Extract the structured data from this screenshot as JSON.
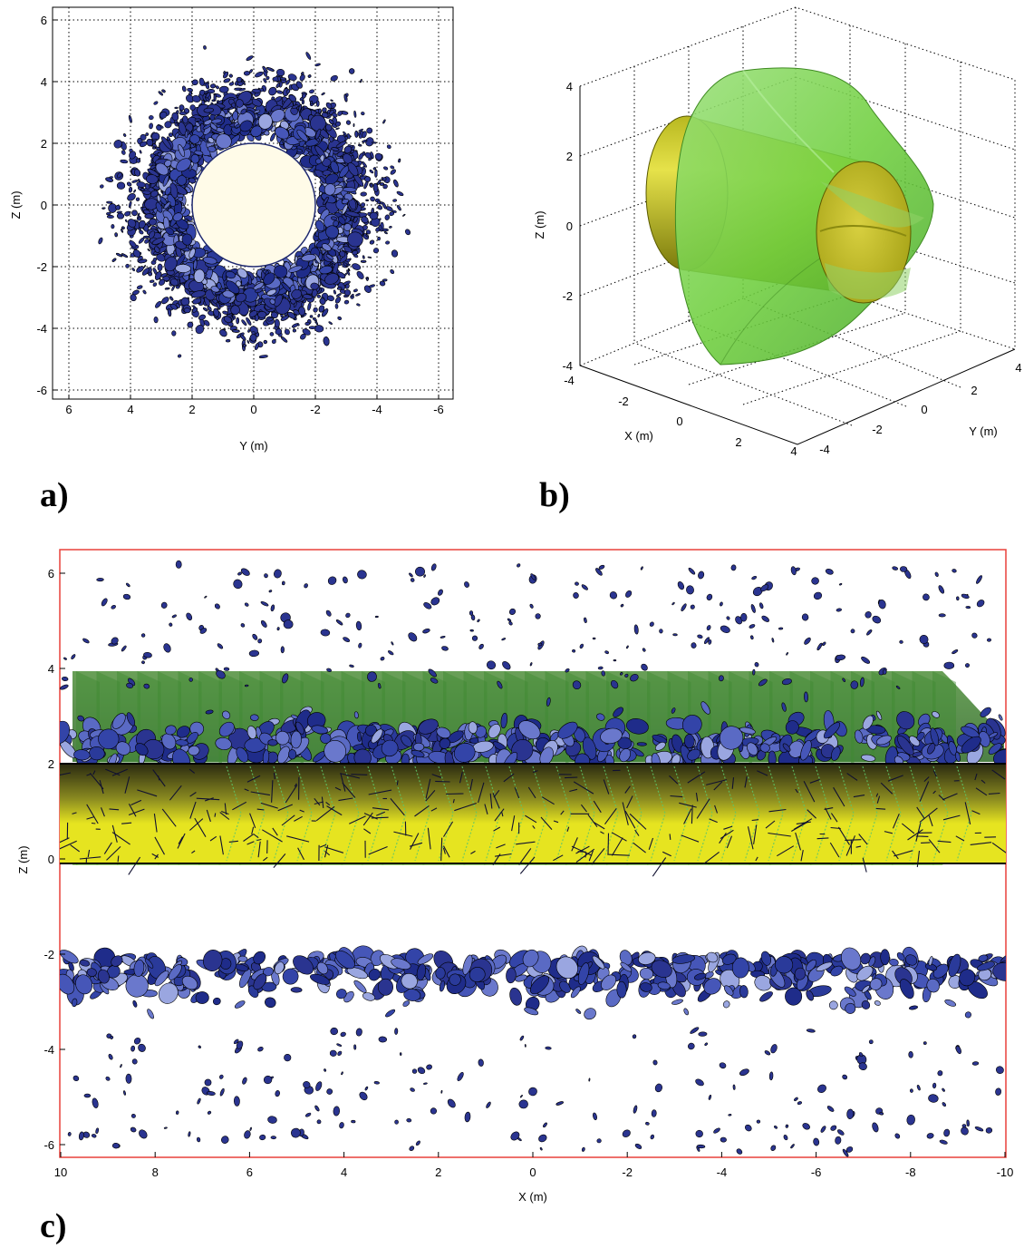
{
  "panels": {
    "a": {
      "label": "a)",
      "xlabel": "Y (m)",
      "ylabel": "Z (m)",
      "xticks": [
        "6",
        "4",
        "2",
        "0",
        "-2",
        "-4",
        "-6"
      ],
      "yticks": [
        "6",
        "4",
        "2",
        "0",
        "-2",
        "-4",
        "-6"
      ]
    },
    "b": {
      "label": "b)",
      "xlabel": "X (m)",
      "ylabel": "Z (m)",
      "zlabel": "Y (m)",
      "zticks": [
        "4",
        "2",
        "0",
        "-2",
        "-4"
      ],
      "xticks": [
        "-4",
        "-2",
        "0",
        "2",
        "4"
      ],
      "yticks": [
        "-4",
        "-2",
        "0",
        "2",
        "4"
      ]
    },
    "c": {
      "label": "c)",
      "xlabel": "X (m)",
      "ylabel": "Z (m)",
      "xticks": [
        "10",
        "8",
        "6",
        "4",
        "2",
        "0",
        "-2",
        "-4",
        "-6",
        "-8",
        "-10"
      ],
      "yticks": [
        "6",
        "4",
        "2",
        "0",
        "-2",
        "-4",
        "-6"
      ]
    }
  },
  "colors": {
    "fracture_blue": "#2a3a9a",
    "fracture_light": "#9aa6e0",
    "tunnel_face": "#fffbe8",
    "tunnel_yellow": "#e8e200",
    "cone_green": "#7ad84a",
    "frame_red": "#e8403a"
  },
  "model": {
    "tunnel_radius_m": 2,
    "damage_radius_m": 4,
    "panel_c_x_range": [
      10,
      -10
    ],
    "panel_c_z_range": [
      -6.5,
      6.5
    ]
  }
}
